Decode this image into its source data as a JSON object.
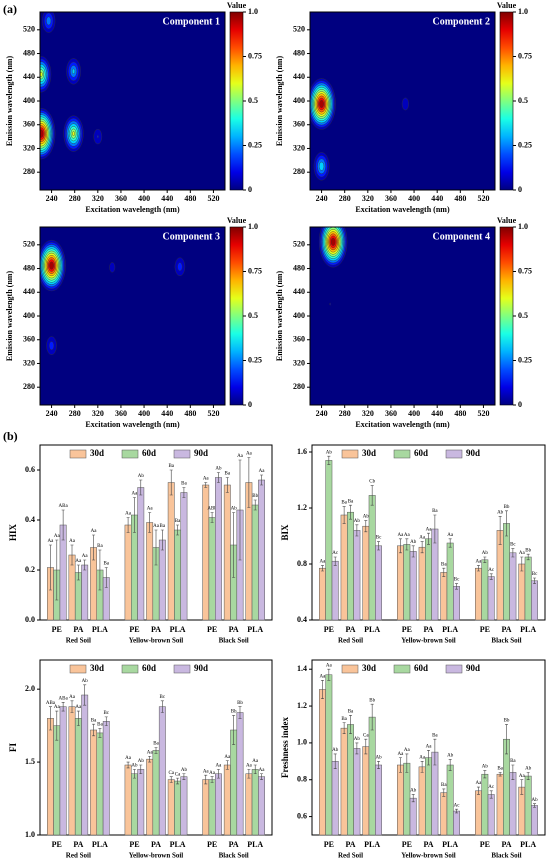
{
  "figure": {
    "panel_labels": [
      "(a)",
      "(b)"
    ]
  },
  "chart_data": [
    {
      "type": "contour",
      "title": "Component 1",
      "xlabel": "Excitation wavelength (nm)",
      "ylabel": "Emission wavelength (nm)",
      "xlim": [
        220,
        540
      ],
      "xticks": [
        240,
        280,
        320,
        360,
        400,
        440,
        480,
        520
      ],
      "ylim": [
        250,
        550
      ],
      "yticks": [
        280,
        320,
        360,
        400,
        440,
        480,
        520
      ],
      "colorbar_label": "Value",
      "clim": [
        0,
        1
      ],
      "cticks": [
        0,
        0.25,
        0.5,
        0.75,
        {
          "value": 1,
          "label": "1.0"
        }
      ],
      "peaks": [
        {
          "ex": 222,
          "em": 345,
          "value": 1
        },
        {
          "ex": 222,
          "em": 445,
          "value": 0.6
        },
        {
          "ex": 278,
          "em": 345,
          "value": 0.6
        },
        {
          "ex": 278,
          "em": 450,
          "value": 0.35
        },
        {
          "ex": 235,
          "em": 535,
          "value": 0.3
        },
        {
          "ex": 320,
          "em": 340,
          "value": 0.15
        }
      ]
    },
    {
      "type": "contour",
      "title": "Component 2",
      "xlabel": "Excitation wavelength (nm)",
      "ylabel": "Emission wavelength (nm)",
      "xlim": [
        220,
        540
      ],
      "xticks": [
        240,
        280,
        320,
        360,
        400,
        440,
        480,
        520
      ],
      "ylim": [
        250,
        550
      ],
      "yticks": [
        280,
        320,
        360,
        400,
        440,
        480,
        520
      ],
      "colorbar_label": "Value",
      "clim": [
        0,
        1
      ],
      "cticks": [
        0,
        0.25,
        0.5,
        0.75,
        {
          "value": 1,
          "label": "1.0"
        }
      ],
      "peaks": [
        {
          "ex": 240,
          "em": 395,
          "value": 1
        },
        {
          "ex": 240,
          "em": 290,
          "value": 0.4
        },
        {
          "ex": 385,
          "em": 395,
          "value": 0.12
        }
      ]
    },
    {
      "type": "contour",
      "title": "Component 3",
      "xlabel": "Excitation wavelength (nm)",
      "ylabel": "Emission wavelength (nm)",
      "xlim": [
        220,
        540
      ],
      "xticks": [
        240,
        280,
        320,
        360,
        400,
        440,
        480,
        520
      ],
      "ylim": [
        250,
        550
      ],
      "yticks": [
        280,
        320,
        360,
        400,
        440,
        480,
        520
      ],
      "colorbar_label": "Value",
      "clim": [
        0,
        1
      ],
      "cticks": [
        0,
        0.25,
        0.5,
        0.75,
        {
          "value": 1,
          "label": "1.0"
        }
      ],
      "peaks": [
        {
          "ex": 240,
          "em": 485,
          "value": 1
        },
        {
          "ex": 240,
          "em": 350,
          "value": 0.2
        },
        {
          "ex": 345,
          "em": 482,
          "value": 0.1
        },
        {
          "ex": 462,
          "em": 483,
          "value": 0.2
        }
      ]
    },
    {
      "type": "contour",
      "title": "Component 4",
      "xlabel": "Excitation wavelength (nm)",
      "ylabel": "Emission wavelength (nm)",
      "xlim": [
        220,
        540
      ],
      "xticks": [
        240,
        280,
        320,
        360,
        400,
        440,
        480,
        520
      ],
      "ylim": [
        250,
        550
      ],
      "yticks": [
        280,
        320,
        360,
        400,
        440,
        480,
        520
      ],
      "colorbar_label": "Value",
      "clim": [
        0,
        1
      ],
      "cticks": [
        0,
        0.25,
        0.5,
        0.75,
        {
          "value": 1,
          "label": "1.0"
        }
      ],
      "peaks": [
        {
          "ex": 260,
          "em": 525,
          "value": 1
        },
        {
          "ex": 255,
          "em": 420,
          "value": 0.06
        }
      ]
    },
    {
      "type": "bar",
      "ylabel": "HIX",
      "groups": [
        "Red Soil",
        "Yellow-brown Soil",
        "Black Soil"
      ],
      "categories": [
        "PE",
        "PA",
        "PLA",
        "PE",
        "PA",
        "PLA",
        "PE",
        "PA",
        "PLA"
      ],
      "ylim": [
        0,
        0.7
      ],
      "yticks": [
        {
          "value": 0,
          "label": "0.0"
        },
        0.2,
        0.4,
        0.6
      ],
      "series": [
        {
          "name": "30d",
          "color": "#f9c49a",
          "values": [
            0.21,
            0.26,
            0.29,
            0.38,
            0.39,
            0.55,
            0.54,
            0.54,
            0.55
          ],
          "errors": [
            0.09,
            0.04,
            0.05,
            0.03,
            0.04,
            0.05,
            0.01,
            0.03,
            0.1
          ],
          "letters": [
            "Aa",
            "Aa",
            "Aa",
            "Aa",
            "Aa",
            "Ba",
            "Aa",
            "Ba",
            "Aa"
          ]
        },
        {
          "name": "60d",
          "color": "#a8d8a0",
          "values": [
            0.2,
            0.19,
            0.2,
            0.42,
            0.29,
            0.36,
            0.41,
            0.3,
            0.46
          ],
          "errors": [
            0.12,
            0.03,
            0.08,
            0.07,
            0.07,
            0.02,
            0.02,
            0.13,
            0.02
          ],
          "letters": [
            "Aa",
            "Aa",
            "Ba",
            "Aa",
            "Aa",
            "Ba",
            "ABb",
            "Ab",
            "Bb"
          ]
        },
        {
          "name": "90d",
          "color": "#c9b8e0",
          "values": [
            0.38,
            0.22,
            0.17,
            0.53,
            0.32,
            0.51,
            0.57,
            0.44,
            0.56
          ],
          "errors": [
            0.06,
            0.02,
            0.04,
            0.03,
            0.04,
            0.02,
            0.02,
            0.2,
            0.02
          ],
          "letters": [
            "ABa",
            "Aa",
            "Ba",
            "Ab",
            "Ba",
            "Ba",
            "Ab",
            "Aa",
            "Aa"
          ]
        }
      ]
    },
    {
      "type": "bar",
      "ylabel": "BIX",
      "groups": [
        "Red Soil",
        "Yellow-brown Soil",
        "Black Soil"
      ],
      "categories": [
        "PE",
        "PA",
        "PLA",
        "PE",
        "PA",
        "PLA",
        "PE",
        "PA",
        "PLA"
      ],
      "ylim": [
        0.4,
        1.65
      ],
      "yticks": [
        0.4,
        0.8,
        1.2,
        1.6
      ],
      "series": [
        {
          "name": "30d",
          "color": "#f9c49a",
          "values": [
            0.77,
            1.15,
            1.07,
            0.93,
            0.92,
            0.74,
            0.77,
            1.04,
            0.8
          ],
          "errors": [
            0.02,
            0.06,
            0.04,
            0.05,
            0.04,
            0.03,
            0.02,
            0.1,
            0.05
          ],
          "letters": [
            "Aa",
            "Ba",
            "Ab",
            "Aa",
            "Aa",
            "Ba",
            "Aa",
            "Ab",
            "Aa"
          ]
        },
        {
          "name": "60d",
          "color": "#a8d8a0",
          "values": [
            1.54,
            1.17,
            1.29,
            0.94,
            0.98,
            0.95,
            0.83,
            1.09,
            0.85
          ],
          "errors": [
            0.03,
            0.05,
            0.07,
            0.04,
            0.04,
            0.03,
            0.02,
            0.09,
            0.02
          ],
          "letters": [
            "Ab",
            "Ba",
            "Cb",
            "Aa",
            "Aa",
            "Aa",
            "Ab",
            "Bb",
            "Bb"
          ]
        },
        {
          "name": "90d",
          "color": "#c9b8e0",
          "values": [
            0.82,
            1.04,
            0.93,
            0.89,
            1.05,
            0.64,
            0.71,
            0.88,
            0.68
          ],
          "errors": [
            0.03,
            0.04,
            0.03,
            0.04,
            0.1,
            0.02,
            0.02,
            0.03,
            0.02
          ],
          "letters": [
            "Ac",
            "Ab",
            "Bc",
            "Ab",
            "Ba",
            "Bc",
            "Ac",
            "Bc",
            "Bc"
          ]
        }
      ]
    },
    {
      "type": "bar",
      "ylabel": "FI",
      "groups": [
        "Red Soil",
        "Yellow-brown Soil",
        "Black Soil"
      ],
      "categories": [
        "PE",
        "PA",
        "PLA",
        "PE",
        "PA",
        "PLA",
        "PE",
        "PA",
        "PLA"
      ],
      "ylim": [
        1,
        2.2
      ],
      "yticks": [
        {
          "value": 1,
          "label": "1.0"
        },
        1.5,
        {
          "value": 2,
          "label": "2.0"
        }
      ],
      "series": [
        {
          "name": "30d",
          "color": "#f9c49a",
          "values": [
            1.8,
            1.88,
            1.72,
            1.48,
            1.52,
            1.38,
            1.38,
            1.48,
            1.42
          ],
          "errors": [
            0.08,
            0.04,
            0.04,
            0.02,
            0.02,
            0.02,
            0.03,
            0.03,
            0.03
          ],
          "letters": [
            "ABa",
            "Aa",
            "Ba",
            "Aa",
            "Aa",
            "Ca",
            "Aa",
            "Aa",
            "Aa"
          ]
        },
        {
          "name": "60d",
          "color": "#a8d8a0",
          "values": [
            1.75,
            1.8,
            1.7,
            1.42,
            1.58,
            1.37,
            1.38,
            1.72,
            1.45
          ],
          "errors": [
            0.1,
            0.05,
            0.03,
            0.03,
            0.02,
            0.02,
            0.02,
            0.1,
            0.03
          ],
          "letters": [
            "Aa",
            "Aa",
            "Ba",
            "Ab",
            "Ba",
            "Ca",
            "Aa",
            "Bb",
            "Aa"
          ]
        },
        {
          "name": "90d",
          "color": "#c9b8e0",
          "values": [
            1.88,
            1.96,
            1.78,
            1.45,
            1.88,
            1.4,
            1.42,
            1.84,
            1.4
          ],
          "errors": [
            0.03,
            0.07,
            0.03,
            0.03,
            0.04,
            0.02,
            0.03,
            0.04,
            0.02
          ],
          "letters": [
            "ABa",
            "Ab",
            "Bc",
            "Ab",
            "Bc",
            "Ab",
            "Aa",
            "Bb",
            "Aa"
          ]
        }
      ]
    },
    {
      "type": "bar",
      "ylabel": "Freshness index",
      "groups": [
        "Red Soil",
        "Yellow-brown Soil",
        "Black Soil"
      ],
      "categories": [
        "PE",
        "PA",
        "PLA",
        "PE",
        "PA",
        "PLA",
        "PE",
        "PA",
        "PLA"
      ],
      "ylim": [
        0.5,
        1.45
      ],
      "yticks": [
        0.6,
        0.8,
        {
          "value": 1,
          "label": "1.0"
        },
        1.2,
        1.4
      ],
      "series": [
        {
          "name": "30d",
          "color": "#f9c49a",
          "values": [
            1.29,
            1.08,
            0.98,
            0.88,
            0.87,
            0.73,
            0.74,
            0.83,
            0.76
          ],
          "errors": [
            0.05,
            0.03,
            0.04,
            0.04,
            0.03,
            0.02,
            0.02,
            0.01,
            0.04
          ],
          "letters": [
            "Aa",
            "Ba",
            "Ca",
            "Aa",
            "Aa",
            "Ba",
            "Aa",
            "Ba",
            "Aa"
          ]
        },
        {
          "name": "60d",
          "color": "#a8d8a0",
          "values": [
            1.37,
            1.1,
            1.14,
            0.89,
            0.92,
            0.88,
            0.83,
            1.02,
            0.82
          ],
          "errors": [
            0.03,
            0.05,
            0.07,
            0.05,
            0.04,
            0.03,
            0.02,
            0.08,
            0.02
          ],
          "letters": [
            "Aa",
            "Ba",
            "Bb",
            "Aa",
            "Aa",
            "Ab",
            "Ab",
            "Bb",
            "Ab"
          ]
        },
        {
          "name": "90d",
          "color": "#c9b8e0",
          "values": [
            0.9,
            0.97,
            0.88,
            0.7,
            0.95,
            0.63,
            0.72,
            0.84,
            0.66
          ],
          "errors": [
            0.04,
            0.03,
            0.02,
            0.02,
            0.07,
            0.01,
            0.02,
            0.04,
            0.01
          ],
          "letters": [
            "Ab",
            "Ab",
            "Ab",
            "Ab",
            "Ba",
            "Ac",
            "Ac",
            "Ba",
            "Ab"
          ]
        }
      ]
    }
  ]
}
